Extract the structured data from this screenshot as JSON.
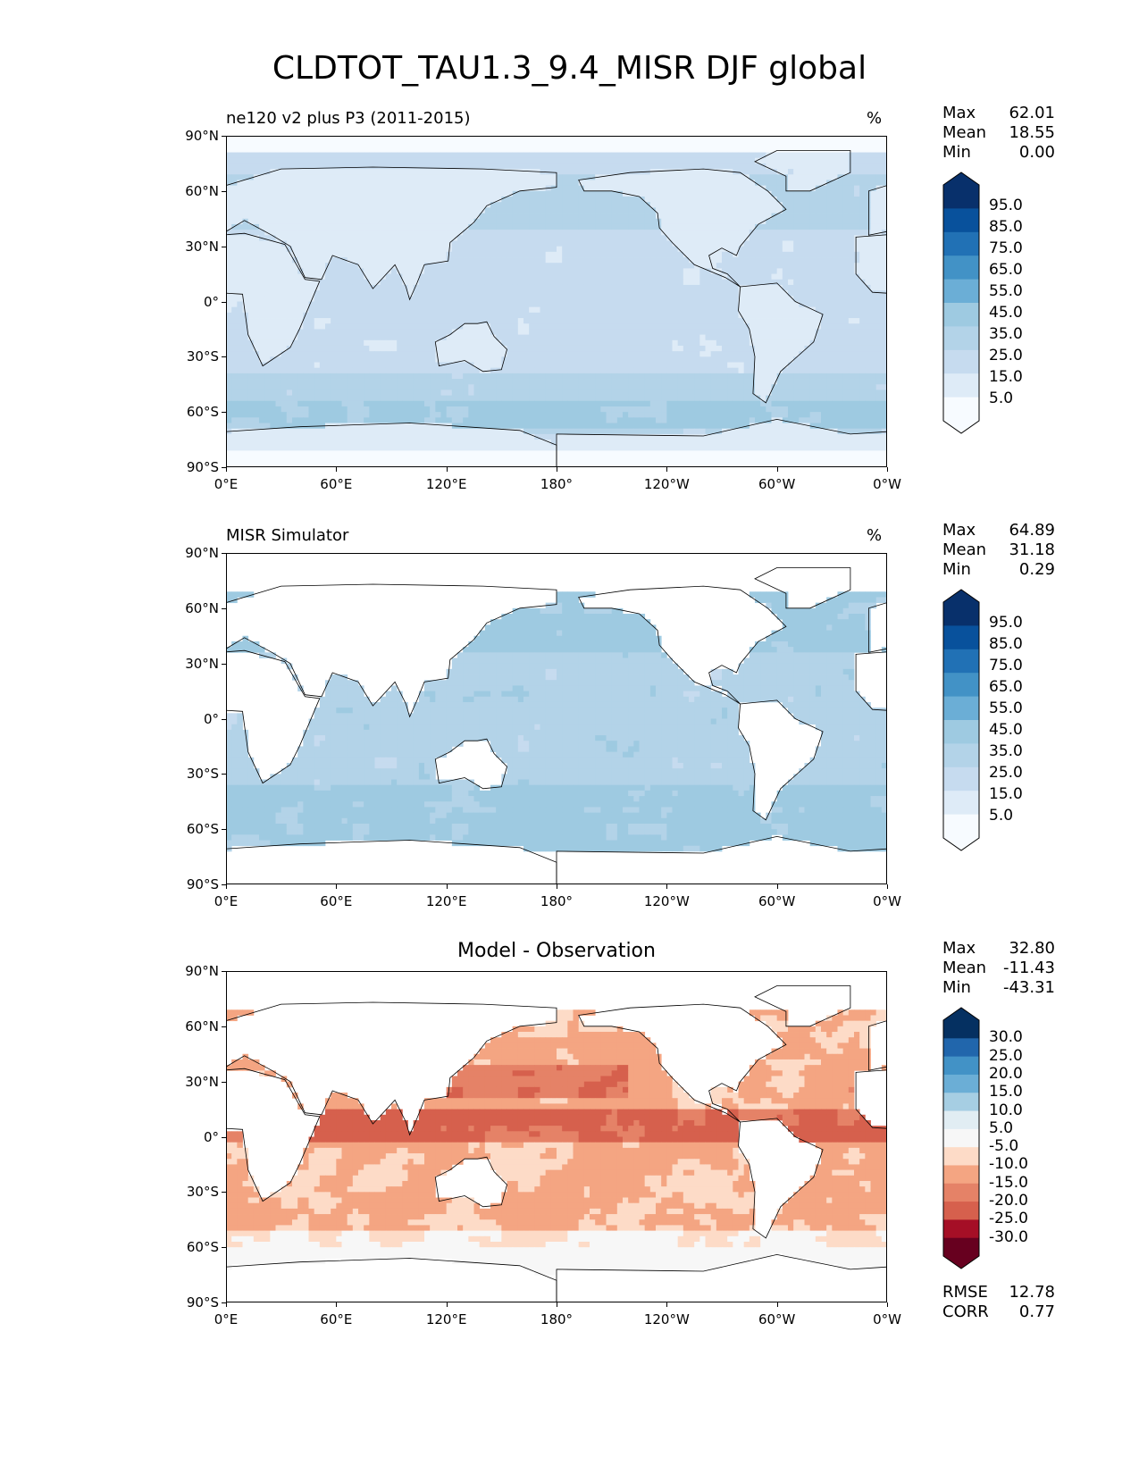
{
  "title": "CLDTOT_TAU1.3_9.4_MISR DJF global",
  "colors": {
    "blues": [
      "#f7fbff",
      "#deebf7",
      "#c6dbef",
      "#b3d3e8",
      "#9ecae1",
      "#6baed6",
      "#4292c6",
      "#2171b5",
      "#08519c",
      "#08306b"
    ],
    "diff": [
      "#67001f",
      "#a50f26",
      "#d6604d",
      "#e58267",
      "#f4a582",
      "#fddbc7",
      "#f7f7f7",
      "#e1edf3",
      "#a6cee3",
      "#6baed6",
      "#4292c6",
      "#2166ac",
      "#053061"
    ]
  },
  "axes": {
    "yticks": [
      "90°N",
      "60°N",
      "30°N",
      "0°",
      "30°S",
      "60°S",
      "90°S"
    ],
    "xticks": [
      "0°E",
      "60°E",
      "120°E",
      "180°",
      "120°W",
      "60°W",
      "0°W"
    ]
  },
  "panels": [
    {
      "title_left": "ne120 v2 plus P3 (2011-2015)",
      "units": "%",
      "stats": [
        {
          "k": "Max",
          "v": "62.01"
        },
        {
          "k": "Mean",
          "v": "18.55"
        },
        {
          "k": "Min",
          "v": "0.00"
        }
      ],
      "colorbar": [
        "95.0",
        "85.0",
        "75.0",
        "65.0",
        "55.0",
        "45.0",
        "35.0",
        "25.0",
        "15.0",
        "5.0"
      ]
    },
    {
      "title_left": "MISR Simulator",
      "units": "%",
      "stats": [
        {
          "k": "Max",
          "v": "64.89"
        },
        {
          "k": "Mean",
          "v": "31.18"
        },
        {
          "k": "Min",
          "v": "0.29"
        }
      ],
      "colorbar": [
        "95.0",
        "85.0",
        "75.0",
        "65.0",
        "55.0",
        "45.0",
        "35.0",
        "25.0",
        "15.0",
        "5.0"
      ]
    },
    {
      "title_center": "Model - Observation",
      "stats": [
        {
          "k": "Max",
          "v": "32.80"
        },
        {
          "k": "Mean",
          "v": "-11.43"
        },
        {
          "k": "Min",
          "v": "-43.31"
        }
      ],
      "colorbar": [
        "30.0",
        "25.0",
        "20.0",
        "15.0",
        "10.0",
        "5.0",
        "-5.0",
        "-10.0",
        "-15.0",
        "-20.0",
        "-25.0",
        "-30.0"
      ],
      "extra_stats": [
        {
          "k": "RMSE",
          "v": "12.78"
        },
        {
          "k": "CORR",
          "v": "0.77"
        }
      ]
    }
  ],
  "chart_data": [
    {
      "type": "heatmap",
      "title": "ne120 v2 plus P3 (2011-2015)",
      "units": "%",
      "x_range": [
        0,
        360
      ],
      "y_range": [
        -90,
        90
      ],
      "max": 62.01,
      "mean": 18.55,
      "min": 0.0,
      "levels": [
        5,
        15,
        25,
        35,
        45,
        55,
        65,
        75,
        85,
        95
      ]
    },
    {
      "type": "heatmap",
      "title": "MISR Simulator",
      "units": "%",
      "x_range": [
        0,
        360
      ],
      "y_range": [
        -90,
        90
      ],
      "max": 64.89,
      "mean": 31.18,
      "min": 0.29,
      "levels": [
        5,
        15,
        25,
        35,
        45,
        55,
        65,
        75,
        85,
        95
      ]
    },
    {
      "type": "heatmap",
      "title": "Model - Observation",
      "x_range": [
        0,
        360
      ],
      "y_range": [
        -90,
        90
      ],
      "max": 32.8,
      "mean": -11.43,
      "min": -43.31,
      "rmse": 12.78,
      "corr": 0.77,
      "levels": [
        -30,
        -25,
        -20,
        -15,
        -10,
        -5,
        5,
        10,
        15,
        20,
        25,
        30
      ]
    }
  ]
}
